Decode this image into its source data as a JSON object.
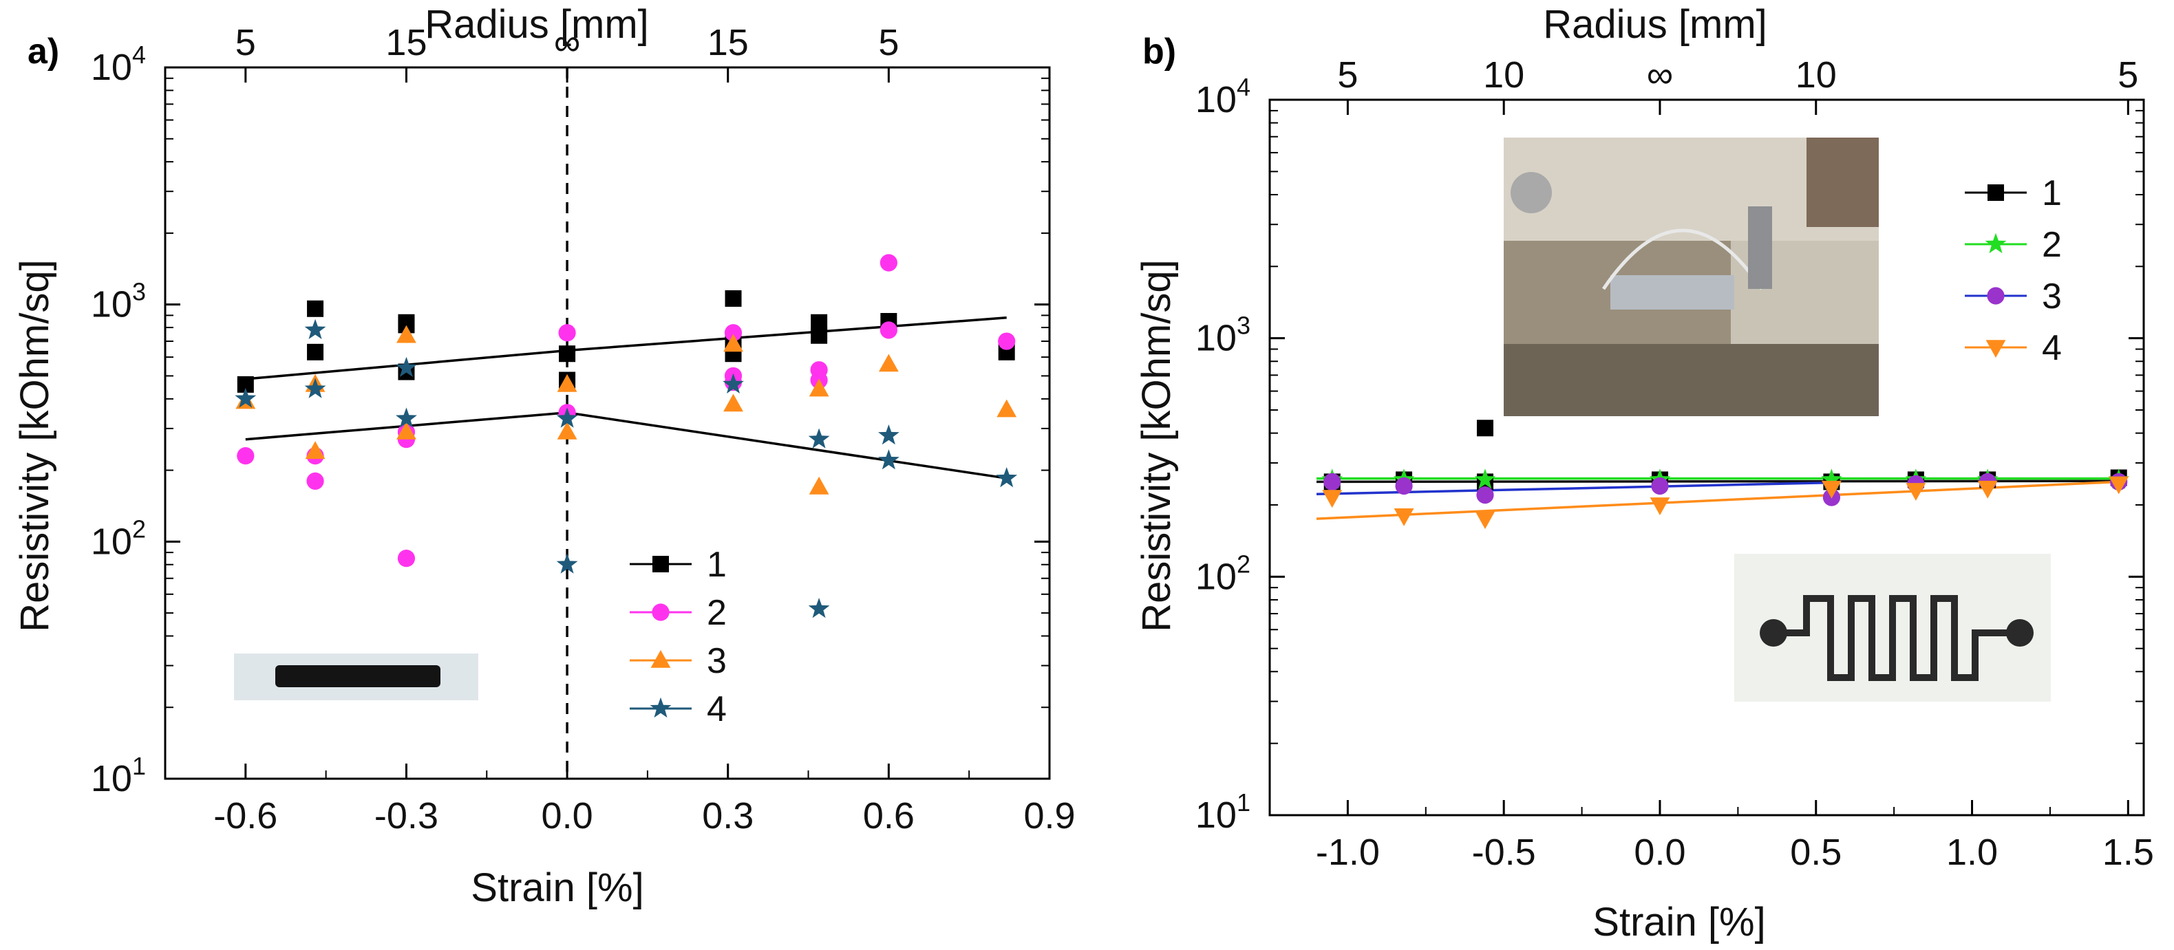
{
  "figure": {
    "panels": [
      {
        "id": "a",
        "label": "a)",
        "ylabel": "Resistivity [kOhm/sq]",
        "xlabel": "Strain [%]",
        "top_axis_label": "Radius [mm]",
        "top_ticks": [
          "5",
          "15",
          "∞",
          "15",
          "5"
        ],
        "x_ticks": [
          "-0.6",
          "-0.3",
          "0.0",
          "0.3",
          "0.6",
          "0.9"
        ],
        "y_ticks": [
          "10",
          "10",
          "10",
          "10"
        ],
        "y_tick_exponents": [
          "1",
          "2",
          "3",
          "4"
        ],
        "legend": [
          "1",
          "2",
          "3",
          "4"
        ],
        "inset": "black strip sample photo"
      },
      {
        "id": "b",
        "label": "b)",
        "ylabel": "Resistivity [kOhm/sq]",
        "xlabel": "Strain [%]",
        "top_axis_label": "Radius [mm]",
        "top_ticks": [
          "5",
          "10",
          "∞",
          "10",
          "5"
        ],
        "x_ticks": [
          "-1.0",
          "-0.5",
          "0.0",
          "0.5",
          "1.0",
          "1.5"
        ],
        "y_ticks": [
          "10",
          "10",
          "10",
          "10"
        ],
        "y_tick_exponents": [
          "1",
          "2",
          "3",
          "4"
        ],
        "legend": [
          "1",
          "2",
          "3",
          "4"
        ],
        "inset": "bending test photo and serpentine pattern photo"
      }
    ]
  },
  "chart_data": [
    {
      "type": "scatter",
      "title": "a)",
      "xlabel": "Strain [%]",
      "ylabel": "Resistivity [kOhm/sq]",
      "top_xlabel": "Radius [mm]",
      "xlim": [
        -0.75,
        0.9
      ],
      "ylim": [
        10,
        10000
      ],
      "yscale": "log",
      "legend_position": "lower-center",
      "vertical_reference_line": 0.0,
      "series": [
        {
          "name": "1",
          "marker": "square",
          "color": "#000000",
          "points": [
            [
              -0.6,
              460
            ],
            [
              -0.47,
              960
            ],
            [
              -0.47,
              630
            ],
            [
              -0.3,
              840
            ],
            [
              -0.3,
              820
            ],
            [
              -0.3,
              520
            ],
            [
              0.0,
              620
            ],
            [
              0.0,
              480
            ],
            [
              0.31,
              1060
            ],
            [
              0.31,
              710
            ],
            [
              0.31,
              620
            ],
            [
              0.47,
              840
            ],
            [
              0.47,
              740
            ],
            [
              0.6,
              850
            ],
            [
              0.82,
              630
            ]
          ]
        },
        {
          "name": "2",
          "marker": "circle",
          "color": "#ff33ee",
          "points": [
            [
              -0.6,
              230
            ],
            [
              -0.47,
              230
            ],
            [
              -0.47,
              180
            ],
            [
              -0.3,
              290
            ],
            [
              -0.3,
              270
            ],
            [
              -0.3,
              85
            ],
            [
              0.0,
              760
            ],
            [
              0.0,
              350
            ],
            [
              0.31,
              760
            ],
            [
              0.31,
              500
            ],
            [
              0.31,
              470
            ],
            [
              0.47,
              530
            ],
            [
              0.47,
              480
            ],
            [
              0.6,
              1500
            ],
            [
              0.6,
              780
            ],
            [
              0.82,
              700
            ]
          ]
        },
        {
          "name": "3",
          "marker": "triangle",
          "color": "#ff8c1a",
          "points": [
            [
              -0.6,
              390
            ],
            [
              -0.47,
              460
            ],
            [
              -0.47,
              240
            ],
            [
              -0.3,
              740
            ],
            [
              -0.3,
              290
            ],
            [
              0.0,
              460
            ],
            [
              0.0,
              290
            ],
            [
              0.31,
              680
            ],
            [
              0.31,
              380
            ],
            [
              0.47,
              440
            ],
            [
              0.47,
              170
            ],
            [
              0.6,
              560
            ],
            [
              0.82,
              360
            ]
          ]
        },
        {
          "name": "4",
          "marker": "star",
          "color": "#1f5a7a",
          "points": [
            [
              -0.6,
              400
            ],
            [
              -0.47,
              780
            ],
            [
              -0.47,
              440
            ],
            [
              -0.3,
              540
            ],
            [
              -0.3,
              330
            ],
            [
              0.0,
              330
            ],
            [
              0.0,
              80
            ],
            [
              0.31,
              460
            ],
            [
              0.47,
              270
            ],
            [
              0.47,
              52
            ],
            [
              0.6,
              280
            ],
            [
              0.6,
              220
            ],
            [
              0.82,
              185
            ]
          ]
        }
      ],
      "fit_lines": [
        {
          "points": [
            [
              -0.6,
              485
            ],
            [
              0.0,
              640
            ],
            [
              0.82,
              880
            ]
          ],
          "color": "#000000"
        },
        {
          "points": [
            [
              -0.6,
              270
            ],
            [
              0.0,
              350
            ],
            [
              0.82,
              185
            ]
          ],
          "color": "#000000"
        }
      ]
    },
    {
      "type": "scatter",
      "title": "b)",
      "xlabel": "Strain [%]",
      "ylabel": "Resistivity [kOhm/sq]",
      "top_xlabel": "Radius [mm]",
      "xlim": [
        -1.25,
        1.55
      ],
      "ylim": [
        10,
        10000
      ],
      "yscale": "log",
      "legend_position": "top-right",
      "series": [
        {
          "name": "1",
          "marker": "square",
          "color": "#000000",
          "points": [
            [
              -1.05,
              250
            ],
            [
              -0.82,
              255
            ],
            [
              -0.56,
              420
            ],
            [
              -0.56,
              250
            ],
            [
              0.0,
              255
            ],
            [
              0.55,
              250
            ],
            [
              0.82,
              255
            ],
            [
              1.05,
              255
            ],
            [
              1.47,
              260
            ]
          ]
        },
        {
          "name": "2",
          "marker": "star",
          "color": "#22dd22",
          "points": [
            [
              -1.05,
              255
            ],
            [
              -0.82,
              255
            ],
            [
              -0.56,
              255
            ],
            [
              0.0,
              255
            ],
            [
              0.55,
              255
            ],
            [
              0.82,
              255
            ],
            [
              1.05,
              255
            ],
            [
              1.47,
              255
            ]
          ]
        },
        {
          "name": "3",
          "marker": "circle",
          "color": "#9933cc",
          "points": [
            [
              -1.05,
              250
            ],
            [
              -0.82,
              240
            ],
            [
              -0.56,
              220
            ],
            [
              0.0,
              240
            ],
            [
              0.55,
              215
            ],
            [
              0.82,
              245
            ],
            [
              1.05,
              250
            ],
            [
              1.47,
              250
            ]
          ]
        },
        {
          "name": "4",
          "marker": "triangle-down",
          "color": "#ff8c1a",
          "points": [
            [
              -1.05,
              215
            ],
            [
              -0.82,
              180
            ],
            [
              -0.56,
              175
            ],
            [
              0.0,
              200
            ],
            [
              0.55,
              235
            ],
            [
              0.82,
              230
            ],
            [
              1.05,
              235
            ],
            [
              1.47,
              245
            ]
          ]
        }
      ],
      "fit_lines": [
        {
          "points": [
            [
              -1.1,
              250
            ],
            [
              1.47,
              252
            ]
          ],
          "color": "#111111"
        },
        {
          "points": [
            [
              -1.1,
              258
            ],
            [
              1.47,
              258
            ]
          ],
          "color": "#22dd22"
        },
        {
          "points": [
            [
              -1.1,
              222
            ],
            [
              0.55,
              248
            ]
          ],
          "color": "#2233cc"
        },
        {
          "points": [
            [
              -1.1,
              175
            ],
            [
              1.47,
              250
            ]
          ],
          "color": "#ff8c1a"
        }
      ]
    }
  ]
}
